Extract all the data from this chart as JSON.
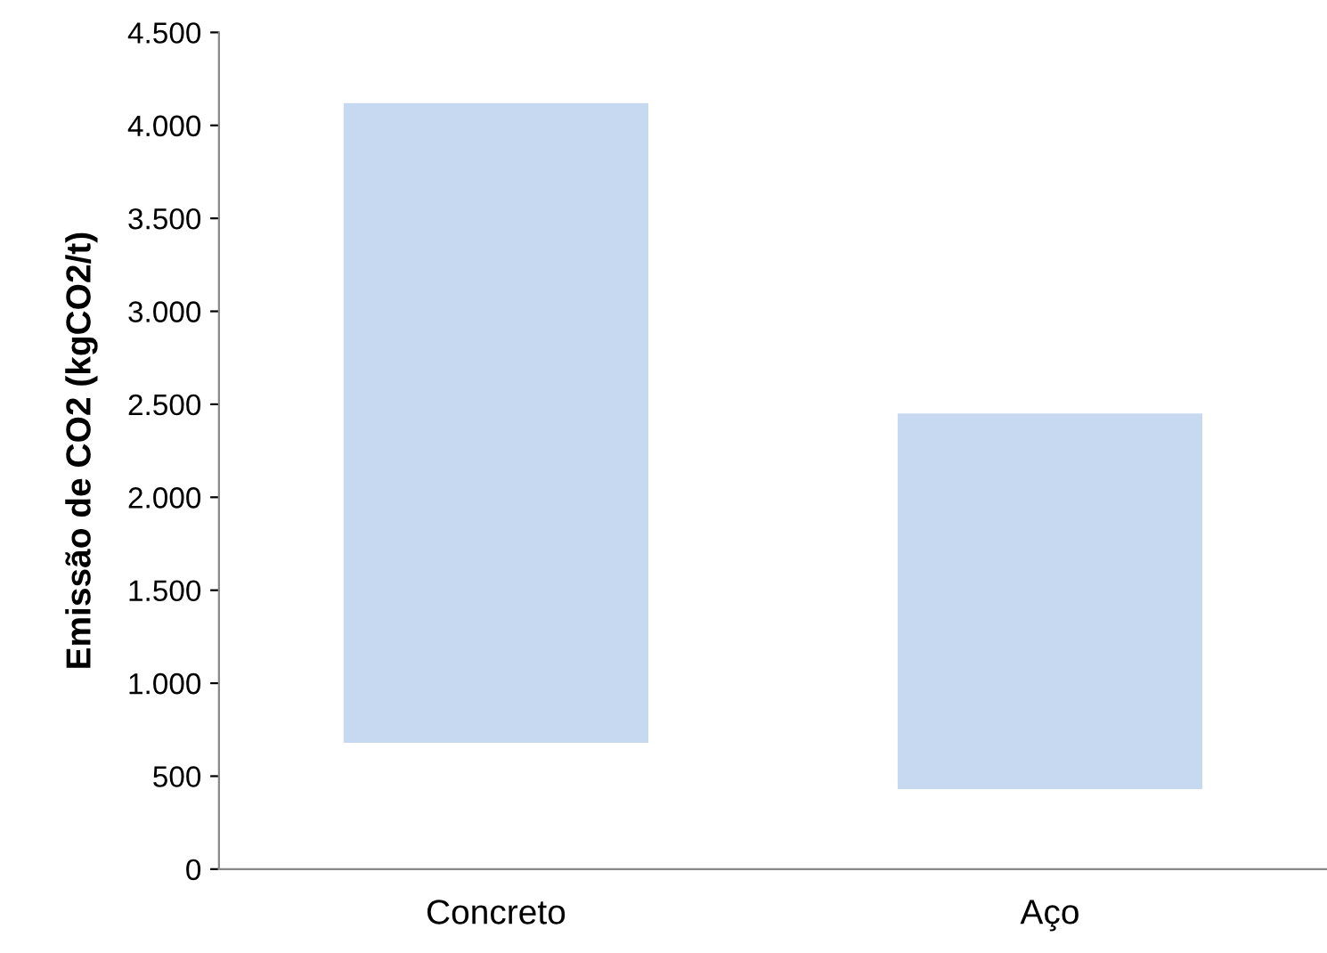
{
  "chart_data": {
    "type": "bar",
    "ylabel": "Emissão de CO2 (kgCO2/t)",
    "categories": [
      "Concreto",
      "Aço"
    ],
    "base": [
      680,
      430
    ],
    "values": [
      3440,
      2020
    ],
    "color": "#c6d9f0",
    "ylim": [
      0,
      4500
    ],
    "yticks": [
      0,
      {
        "value": 500,
        "label": "500"
      },
      {
        "value": 1000,
        "label": "1.000"
      },
      {
        "value": 1500,
        "label": "1.500"
      },
      {
        "value": 2000,
        "label": "2.000"
      },
      {
        "value": 2500,
        "label": "2.500"
      },
      {
        "value": 3000,
        "label": "3.000"
      },
      {
        "value": 3500,
        "label": "3.500"
      },
      {
        "value": 4000,
        "label": "4.000"
      },
      {
        "value": 4500,
        "label": "4.500"
      }
    ],
    "grid": false
  }
}
